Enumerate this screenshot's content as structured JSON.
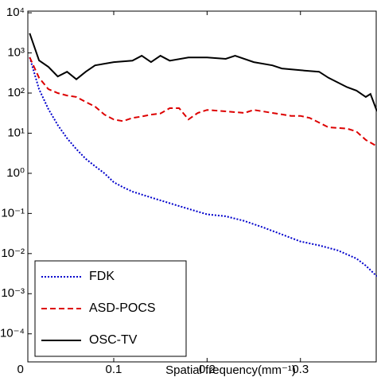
{
  "chart_data": {
    "type": "line",
    "xlabel": "Spatial frequency(mm⁻¹)",
    "xlim": [
      0.008,
      0.382
    ],
    "xticks": [
      0,
      0.1,
      0.2,
      0.3
    ],
    "ylim": [
      2e-05,
      11000
    ],
    "log_y": true,
    "yticks": [
      {
        "value": 10000,
        "label": "10⁴"
      },
      {
        "value": 1000,
        "label": "10³"
      },
      {
        "value": 100,
        "label": "10²"
      },
      {
        "value": 10,
        "label": "10¹"
      },
      {
        "value": 1,
        "label": "10⁰"
      },
      {
        "value": 0.1,
        "label": "10⁻¹"
      },
      {
        "value": 0.01,
        "label": "10⁻²"
      },
      {
        "value": 0.001,
        "label": "10⁻³"
      },
      {
        "value": 0.0001,
        "label": "10⁻⁴"
      }
    ],
    "legend": "lower left",
    "series": [
      {
        "name": "FDK",
        "color": "#0000cc",
        "dash": "2,2",
        "x": [
          0.01,
          0.02,
          0.03,
          0.04,
          0.05,
          0.06,
          0.07,
          0.08,
          0.09,
          0.1,
          0.11,
          0.12,
          0.14,
          0.16,
          0.18,
          0.2,
          0.22,
          0.24,
          0.26,
          0.28,
          0.3,
          0.32,
          0.34,
          0.36,
          0.37,
          0.382
        ],
        "values": [
          780,
          125,
          40,
          16,
          7.5,
          4,
          2.3,
          1.5,
          1,
          0.6,
          0.45,
          0.35,
          0.25,
          0.18,
          0.13,
          0.095,
          0.085,
          0.065,
          0.045,
          0.03,
          0.02,
          0.016,
          0.012,
          0.0075,
          0.005,
          0.0027
        ]
      },
      {
        "name": "ASD-POCS",
        "color": "#dd0000",
        "dash": "7,4",
        "x": [
          0.01,
          0.02,
          0.03,
          0.04,
          0.05,
          0.06,
          0.07,
          0.08,
          0.09,
          0.1,
          0.11,
          0.12,
          0.13,
          0.14,
          0.15,
          0.16,
          0.17,
          0.18,
          0.19,
          0.2,
          0.22,
          0.24,
          0.25,
          0.27,
          0.29,
          0.3,
          0.31,
          0.33,
          0.35,
          0.36,
          0.37,
          0.382
        ],
        "values": [
          780,
          240,
          125,
          100,
          87,
          80,
          60,
          46,
          29,
          22,
          20,
          24,
          26,
          29,
          31,
          42,
          42,
          22,
          32,
          38,
          35,
          32,
          38,
          32,
          27,
          27,
          24,
          14,
          13,
          11,
          6.8,
          4.7
        ]
      },
      {
        "name": "OSC-TV",
        "color": "#000000",
        "dash": "",
        "x": [
          0.01,
          0.02,
          0.03,
          0.04,
          0.05,
          0.06,
          0.07,
          0.08,
          0.1,
          0.12,
          0.13,
          0.14,
          0.15,
          0.16,
          0.18,
          0.2,
          0.22,
          0.23,
          0.25,
          0.27,
          0.28,
          0.3,
          0.32,
          0.33,
          0.35,
          0.36,
          0.37,
          0.375,
          0.382
        ],
        "values": [
          3100,
          650,
          450,
          260,
          340,
          220,
          340,
          490,
          590,
          640,
          850,
          590,
          850,
          640,
          770,
          770,
          710,
          850,
          590,
          490,
          410,
          370,
          340,
          240,
          140,
          115,
          80,
          95,
          35
        ]
      }
    ]
  }
}
